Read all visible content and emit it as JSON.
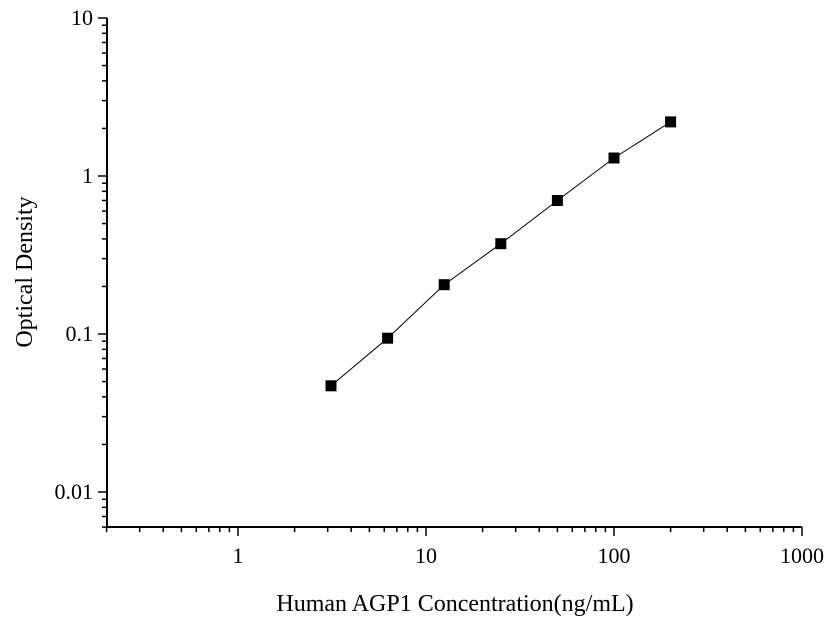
{
  "chart_data": {
    "type": "scatter",
    "xscale": "log",
    "yscale": "log",
    "xlim": [
      0.1,
      1000
    ],
    "ylim": [
      0.005,
      10
    ],
    "xlabel": "Human AGP1 Concentration(ng/mL)",
    "ylabel": "Optical Density",
    "xticks": [
      {
        "value": 1,
        "label": "1"
      },
      {
        "value": 10,
        "label": "10"
      },
      {
        "value": 100,
        "label": "100"
      },
      {
        "value": 1000,
        "label": "1000"
      }
    ],
    "yticks": [
      {
        "value": 0.01,
        "label": "0.01"
      },
      {
        "value": 0.1,
        "label": "0.1"
      },
      {
        "value": 1,
        "label": "1"
      },
      {
        "value": 10,
        "label": "10"
      }
    ],
    "grid": false,
    "series": [
      {
        "marker": "square",
        "line": true,
        "color": "#000000",
        "x": [
          3.125,
          6.25,
          12.5,
          25,
          50,
          100,
          200
        ],
        "y": [
          0.047,
          0.094,
          0.205,
          0.373,
          0.7,
          1.3,
          2.2
        ]
      }
    ]
  }
}
